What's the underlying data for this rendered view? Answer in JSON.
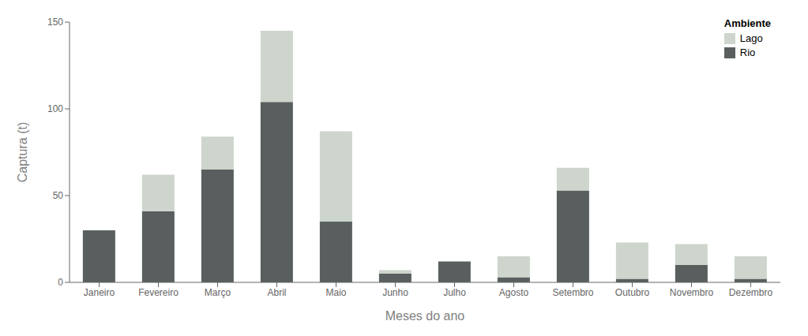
{
  "chart_data": {
    "type": "bar",
    "stacked": true,
    "categories": [
      "Janeiro",
      "Fevereiro",
      "Março",
      "Abril",
      "Maio",
      "Junho",
      "Julho",
      "Agosto",
      "Setembro",
      "Outubro",
      "Novembro",
      "Dezembro"
    ],
    "series": [
      {
        "name": "Rio",
        "color": "#595f5f",
        "values": [
          30,
          41,
          65,
          104,
          35,
          5,
          12,
          3,
          53,
          2,
          10,
          2
        ]
      },
      {
        "name": "Lago",
        "color": "#cdd5cc",
        "values": [
          0,
          21,
          19,
          41,
          52,
          2,
          0,
          12,
          13,
          21,
          12,
          13
        ]
      }
    ],
    "xlabel": "Meses do ano",
    "ylabel": "Captura (t)",
    "ylim": [
      0,
      150
    ],
    "yticks": [
      0,
      50,
      100,
      150
    ],
    "legend_title": "Ambiente",
    "legend": "upper right",
    "grid": false
  }
}
